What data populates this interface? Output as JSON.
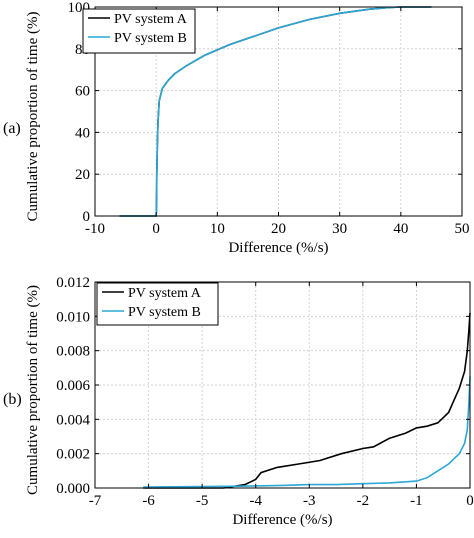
{
  "figure": {
    "panels": [
      "(a)",
      "(b)"
    ]
  },
  "colors": {
    "series_a": "#000000",
    "series_b": "#2aa7d6"
  },
  "chart_data": [
    {
      "type": "line",
      "panel": "(a)",
      "xlabel": "Difference (%/s)",
      "ylabel": "Cumulative proportion of time (%)",
      "xlim": [
        -10,
        50
      ],
      "ylim": [
        0,
        100
      ],
      "xticks": [
        -10,
        0,
        10,
        20,
        30,
        40,
        50
      ],
      "yticks": [
        0,
        20,
        40,
        60,
        80,
        100
      ],
      "grid": true,
      "legend": "top-left",
      "series": [
        {
          "name": "PV system A",
          "color": "#000000",
          "x": [
            -6,
            0,
            0.05,
            0.1,
            0.2,
            0.3,
            0.5,
            1,
            2,
            3,
            5,
            8,
            12,
            16,
            20,
            25,
            30,
            35,
            38,
            40,
            45
          ],
          "y": [
            0,
            0,
            5,
            20,
            35,
            45,
            55,
            61,
            65,
            68,
            72,
            77,
            82,
            86,
            90,
            94,
            97,
            99,
            99.7,
            100,
            100
          ]
        },
        {
          "name": "PV system B",
          "color": "#2aa7d6",
          "x": [
            -6,
            0,
            0.05,
            0.1,
            0.2,
            0.3,
            0.5,
            1,
            2,
            3,
            5,
            8,
            12,
            16,
            20,
            25,
            30,
            35,
            38,
            40,
            45
          ],
          "y": [
            0,
            0,
            5,
            20,
            35,
            45,
            55,
            61,
            65,
            68,
            72,
            77,
            82,
            86,
            90,
            94,
            97,
            99,
            99.7,
            100,
            100
          ]
        }
      ]
    },
    {
      "type": "line",
      "panel": "(b)",
      "xlabel": "Difference (%/s)",
      "ylabel": "Cumulative proportion of time (%)",
      "xlim": [
        -7,
        0
      ],
      "ylim": [
        0,
        0.012
      ],
      "xticks": [
        -7,
        -6,
        -5,
        -4,
        -3,
        -2,
        -1,
        0
      ],
      "xticklabels": [
        "-7",
        "-6",
        "-5",
        "-4",
        "-3",
        "-2",
        "-1",
        "0"
      ],
      "yticks": [
        0,
        0.002,
        0.004,
        0.006,
        0.008,
        0.01,
        0.012
      ],
      "yticklabels": [
        "0.000",
        "0.002",
        "0.004",
        "0.006",
        "0.008",
        "0.010",
        "0.012"
      ],
      "grid": true,
      "legend": "top-left",
      "series": [
        {
          "name": "PV system A",
          "color": "#000000",
          "x": [
            -6.1,
            -4.6,
            -4.2,
            -4.0,
            -3.9,
            -3.6,
            -3.2,
            -2.8,
            -2.4,
            -2.0,
            -1.8,
            -1.5,
            -1.2,
            -1.0,
            -0.8,
            -0.6,
            -0.4,
            -0.3,
            -0.2,
            -0.1,
            -0.05,
            -0.02,
            0
          ],
          "y": [
            0.0,
            0.0,
            0.0002,
            0.0005,
            0.0009,
            0.0012,
            0.0014,
            0.0016,
            0.002,
            0.0023,
            0.0024,
            0.0029,
            0.0032,
            0.0035,
            0.0036,
            0.0038,
            0.0044,
            0.0051,
            0.0058,
            0.0068,
            0.008,
            0.0092,
            0.0102
          ]
        },
        {
          "name": "PV system B",
          "color": "#2aa7d6",
          "x": [
            -6.1,
            -4.5,
            -4.0,
            -3.5,
            -3.0,
            -2.5,
            -2.0,
            -1.5,
            -1.0,
            -0.8,
            -0.6,
            -0.4,
            -0.3,
            -0.2,
            -0.1,
            -0.05,
            -0.02,
            0
          ],
          "y": [
            5e-05,
            0.0001,
            0.00012,
            0.00015,
            0.0002,
            0.0002,
            0.00025,
            0.0003,
            0.0004,
            0.0006,
            0.001,
            0.0014,
            0.0017,
            0.002,
            0.0026,
            0.0034,
            0.005,
            0.0065
          ]
        }
      ]
    }
  ]
}
